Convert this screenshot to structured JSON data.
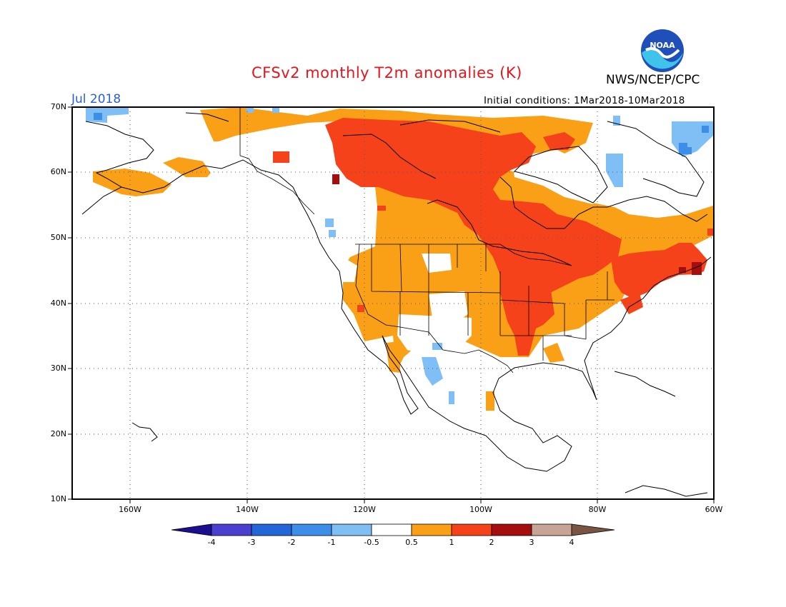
{
  "header": {
    "title": "CFSv2 monthly T2m anomalies (K)",
    "agency": "NWS/NCEP/CPC",
    "logo_text": "NOAA",
    "period": "Jul 2018",
    "initial_conditions": "Initial conditions: 1Mar2018-10Mar2018"
  },
  "axes": {
    "lat_labels": [
      "70N",
      "60N",
      "50N",
      "40N",
      "30N",
      "20N",
      "10N"
    ],
    "lon_labels": [
      "160W",
      "140W",
      "120W",
      "100W",
      "80W",
      "60W"
    ]
  },
  "colorbar": {
    "labels": [
      "-4",
      "-3",
      "-2",
      "-1",
      "-0.5",
      "0.5",
      "1",
      "2",
      "3",
      "4"
    ],
    "colors": [
      "#1b0f8f",
      "#4b3fd0",
      "#2266d8",
      "#3d8ee8",
      "#80bff6",
      "#ffffff",
      "#f9a016",
      "#f6421a",
      "#a50e0e",
      "#c8a497",
      "#7a5443"
    ]
  },
  "legend_colors": {
    "warm_0.5_1": "#f9a016",
    "warm_1_2": "#f6421a",
    "warm_2_3": "#a50e0e",
    "cool_-0.5_-1": "#80bff6",
    "cool_-1_-2": "#3d8ee8",
    "cool_-2_-3": "#2266d8"
  },
  "map": {
    "region": "North America",
    "lat_range": [
      10,
      70
    ],
    "lon_range": [
      -170,
      -60
    ],
    "grid": true
  }
}
